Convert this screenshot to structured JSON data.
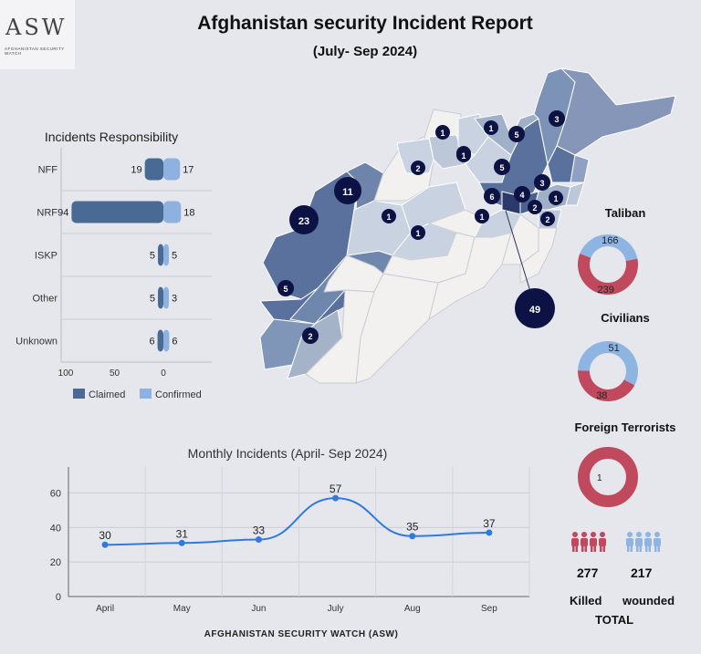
{
  "logo": {
    "mark": "ASW",
    "sub": "AFGHANISTAN SECURITY WATCH"
  },
  "header": {
    "title": "Afghanistan security Incident Report",
    "subtitle": "(July- Sep 2024)"
  },
  "colors": {
    "claimed": "#4a6a96",
    "confirmed": "#8eb1df",
    "killed": "#c0495e",
    "wounded": "#8eb5e2",
    "line": "#2f7ae0",
    "map_dark": "#0c1244"
  },
  "chart_data": [
    {
      "type": "bar",
      "title": "Incidents Responsibility",
      "categories": [
        "NFF",
        "NRF",
        "ISKP",
        "Other",
        "Unknown"
      ],
      "series": [
        {
          "name": "Claimed",
          "values": [
            19,
            94,
            5,
            5,
            6
          ]
        },
        {
          "name": "Confirmed",
          "values": [
            17,
            18,
            5,
            3,
            6
          ]
        }
      ],
      "xticks": [
        "100",
        "50",
        "0"
      ],
      "xlim": [
        0,
        100
      ],
      "legend": "bottom"
    },
    {
      "type": "line",
      "title": "Monthly Incidents (April- Sep 2024)",
      "categories": [
        "April",
        "May",
        "Jun",
        "July",
        "Aug",
        "Sep"
      ],
      "values": [
        30,
        31,
        33,
        57,
        35,
        37
      ],
      "yticks": [
        "0",
        "20",
        "40",
        "60"
      ],
      "ylim": [
        0,
        75
      ],
      "grid": true
    },
    {
      "type": "pie",
      "title": "Taliban",
      "slices": [
        {
          "name": "Killed",
          "value": 239
        },
        {
          "name": "Wounded",
          "value": 166
        }
      ]
    },
    {
      "type": "pie",
      "title": "Civilians",
      "slices": [
        {
          "name": "Killed",
          "value": 38
        },
        {
          "name": "Wounded",
          "value": 51
        }
      ]
    },
    {
      "type": "pie",
      "title": "Foreign Terrorists",
      "slices": [
        {
          "name": "Killed",
          "value": 1
        },
        {
          "name": "Wounded",
          "value": 0
        }
      ]
    }
  ],
  "map": {
    "markers": [
      "1",
      "1",
      "1",
      "5",
      "3",
      "2",
      "1",
      "5",
      "3",
      "11",
      "6",
      "4",
      "1",
      "2",
      "23",
      "1",
      "1",
      "1",
      "2",
      "5",
      "2",
      "49"
    ]
  },
  "totals": {
    "killed_value": "277",
    "wounded_value": "217",
    "killed_label": "Killed",
    "wounded_label": "wounded",
    "total_label": "TOTAL"
  },
  "footer": "AFGHANISTAN SECURITY WATCH (ASW)"
}
